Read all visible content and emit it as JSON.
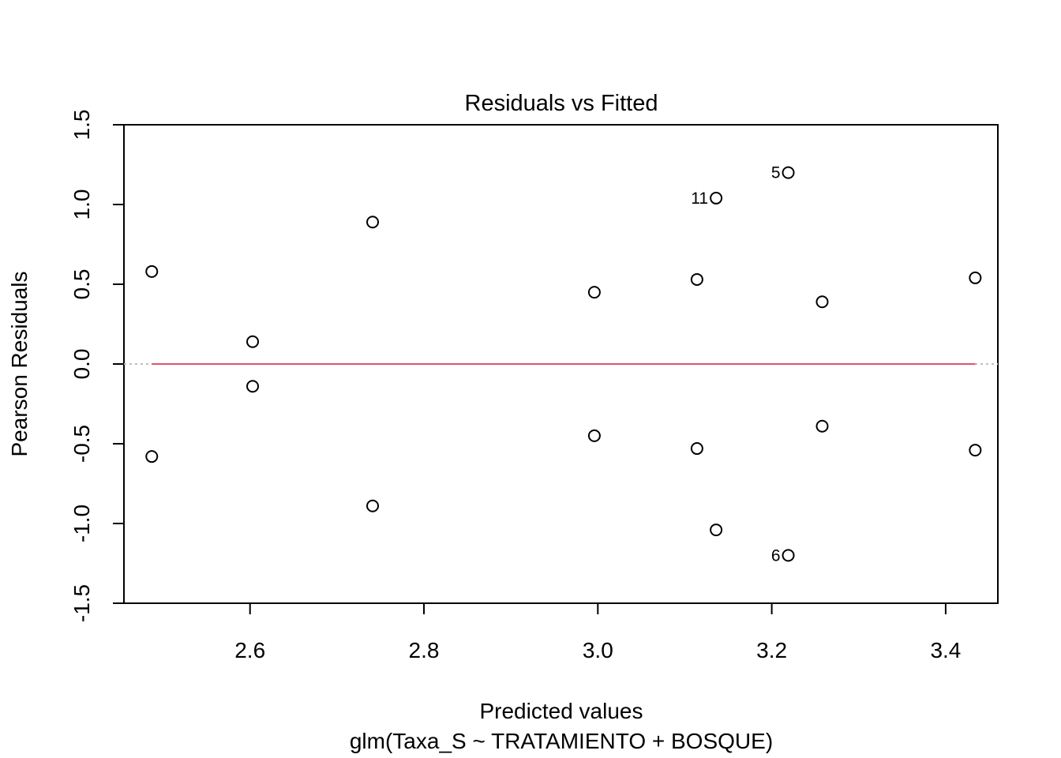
{
  "chart_data": {
    "type": "scatter",
    "title": "Residuals vs Fitted",
    "xlabel": "Predicted values",
    "subtitle": "glm(Taxa_S ~ TRATAMIENTO + BOSQUE)",
    "ylabel": "Pearson Residuals",
    "xlim": [
      2.455,
      3.46
    ],
    "ylim": [
      -1.5,
      1.5
    ],
    "x_ticks": [
      "2.6",
      "2.8",
      "3.0",
      "3.2",
      "3.4"
    ],
    "y_ticks": [
      "-1.5",
      "-1.0",
      "-0.5",
      "0.0",
      "0.5",
      "1.0",
      "1.5"
    ],
    "reference_line": {
      "y": 0,
      "color": "#bebebe",
      "style": "dotted"
    },
    "smooth_color": "#df536b",
    "point_color": "#000000",
    "points": [
      {
        "x": 2.487,
        "y": 0.58,
        "label": ""
      },
      {
        "x": 2.487,
        "y": -0.58,
        "label": ""
      },
      {
        "x": 2.603,
        "y": 0.14,
        "label": ""
      },
      {
        "x": 2.603,
        "y": -0.14,
        "label": ""
      },
      {
        "x": 2.741,
        "y": 0.89,
        "label": ""
      },
      {
        "x": 2.741,
        "y": -0.89,
        "label": ""
      },
      {
        "x": 2.996,
        "y": 0.45,
        "label": ""
      },
      {
        "x": 2.996,
        "y": -0.45,
        "label": ""
      },
      {
        "x": 3.114,
        "y": 0.53,
        "label": ""
      },
      {
        "x": 3.114,
        "y": -0.53,
        "label": ""
      },
      {
        "x": 3.136,
        "y": 1.04,
        "label": "11"
      },
      {
        "x": 3.136,
        "y": -1.04,
        "label": ""
      },
      {
        "x": 3.219,
        "y": 1.2,
        "label": "5"
      },
      {
        "x": 3.219,
        "y": -1.2,
        "label": "6"
      },
      {
        "x": 3.258,
        "y": 0.39,
        "label": ""
      },
      {
        "x": 3.258,
        "y": -0.39,
        "label": ""
      },
      {
        "x": 3.434,
        "y": 0.54,
        "label": ""
      },
      {
        "x": 3.434,
        "y": -0.54,
        "label": ""
      }
    ],
    "smooth_line": {
      "x": [
        2.487,
        3.434
      ],
      "y": [
        0.0,
        0.0
      ]
    }
  }
}
